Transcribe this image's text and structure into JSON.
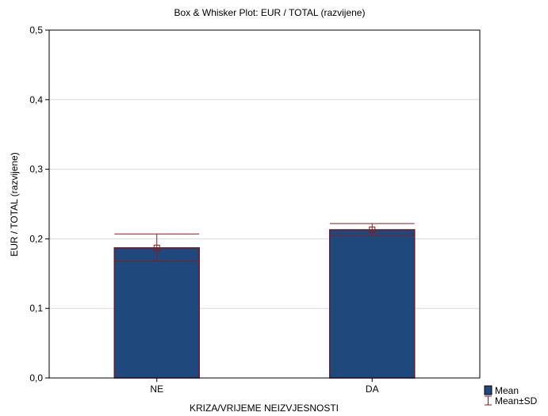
{
  "chart_data": {
    "type": "bar",
    "title": "Box & Whisker Plot: EUR / TOTAL (razvijene)",
    "xlabel": "KRIZA/VRIJEME NEIZVJESNOSTI",
    "ylabel": "EUR / TOTAL  (razvijene)",
    "ylim": [
      0,
      0.5
    ],
    "yticks": [
      "0,0",
      "0,1",
      "0,2",
      "0,3",
      "0,4",
      "0,5"
    ],
    "grid": true,
    "legend_position": "bottom-right",
    "categories": [
      "NE",
      "DA"
    ],
    "series": [
      {
        "name": "Mean",
        "values": [
          0.187,
          0.213
        ],
        "sd_low": [
          0.168,
          0.205
        ],
        "sd_high": [
          0.207,
          0.222
        ]
      }
    ],
    "legend": [
      {
        "label": "Mean",
        "marker": "box"
      },
      {
        "label": "Mean±SD",
        "marker": "whisker"
      }
    ],
    "colors": {
      "bar_fill": "#1f497d",
      "bar_edge": "#6b1a2a",
      "whisker": "#8b1a1a",
      "grid": "#d9d9d9"
    }
  }
}
